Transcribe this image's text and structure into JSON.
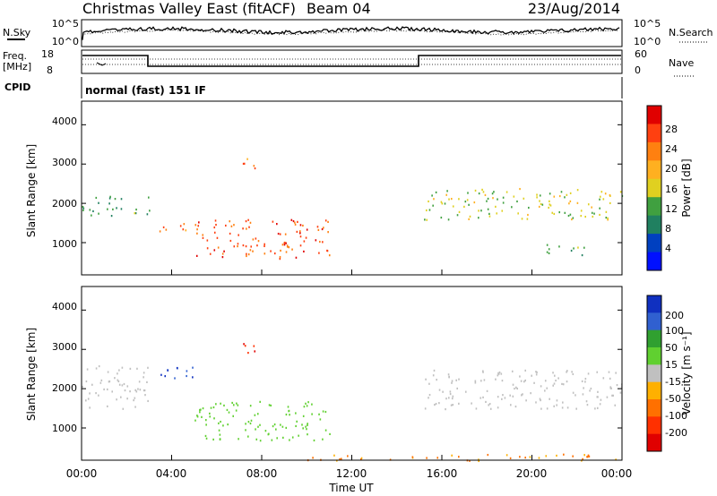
{
  "header": {
    "title": "Christmas Valley East (fitACF)",
    "beam": "Beam 04",
    "date": "23/Aug/2014"
  },
  "status": {
    "nsky_label": "N.Sky",
    "nsky_ticks": [
      "10^5",
      "10^0"
    ],
    "nsearch_label": "N.Search",
    "nsearch_ticks": [
      "10^5",
      "10^0"
    ],
    "freq_label": "Freq.",
    "freq_unit": "[MHz]",
    "freq_ticks": [
      "18",
      "8"
    ],
    "nave_label": "Nave",
    "nave_ticks": [
      "60",
      "0"
    ],
    "cpid_label": "CPID",
    "cpid_value": "normal (fast) 151 IF"
  },
  "panels": {
    "ylabel": "Slant Range [km]",
    "yticks": [
      "4000",
      "3000",
      "2000",
      "1000"
    ],
    "xlabel": "Time UT",
    "xticks": [
      "00:00",
      "04:00",
      "08:00",
      "12:00",
      "16:00",
      "20:00",
      "00:00"
    ]
  },
  "power_scale": {
    "label": "Power [dB]",
    "ticks": [
      "28",
      "24",
      "20",
      "16",
      "12",
      "8",
      "4"
    ],
    "colors": [
      "#e00000",
      "#ff4010",
      "#ff8010",
      "#ffb020",
      "#e0d020",
      "#40a040",
      "#208060",
      "#0040c0",
      "#0010ff"
    ]
  },
  "velocity_scale": {
    "label": "Velocity [m s⁻¹]",
    "ticks": [
      "200",
      "100",
      "50",
      "15",
      "-15",
      "-50",
      "-100",
      "-200"
    ],
    "colors": [
      "#1030c0",
      "#3060d0",
      "#30a030",
      "#60d030",
      "#c0c0c0",
      "#ffb000",
      "#ff7000",
      "#ff3000",
      "#e00000"
    ]
  },
  "chart_data": [
    {
      "type": "heatmap",
      "title": "Power",
      "xlabel": "Time UT",
      "ylabel": "Slant Range [km]",
      "xlim": [
        0,
        24
      ],
      "ylim": [
        180,
        4600
      ],
      "colorbar": "Power [dB]",
      "features": [
        {
          "time": [
            0,
            3
          ],
          "range": [
            1700,
            2200
          ],
          "power": 10
        },
        {
          "time": [
            3,
            6
          ],
          "range": [
            1300,
            1500
          ],
          "power": 22
        },
        {
          "time": [
            5,
            11
          ],
          "range": [
            600,
            1600
          ],
          "power": 26
        },
        {
          "time": [
            7,
            7.8
          ],
          "range": [
            2800,
            3200
          ],
          "power": 22
        },
        {
          "time": [
            15.2,
            24
          ],
          "range": [
            1600,
            2400
          ],
          "power": 14
        },
        {
          "time": [
            20.5,
            22.5
          ],
          "range": [
            700,
            1000
          ],
          "power": 12
        }
      ]
    },
    {
      "type": "heatmap",
      "title": "Velocity",
      "xlabel": "Time UT",
      "ylabel": "Slant Range [km]",
      "xlim": [
        0,
        24
      ],
      "ylim": [
        180,
        4600
      ],
      "colorbar": "Velocity [m s⁻¹]",
      "features": [
        {
          "time": [
            0,
            3
          ],
          "range": [
            1500,
            2600
          ],
          "velocity": 0
        },
        {
          "time": [
            3.3,
            5
          ],
          "range": [
            2200,
            2600
          ],
          "velocity": 200
        },
        {
          "time": [
            5,
            11
          ],
          "range": [
            700,
            1700
          ],
          "velocity": 40
        },
        {
          "time": [
            7,
            7.8
          ],
          "range": [
            2800,
            3200
          ],
          "velocity": -200
        },
        {
          "time": [
            15.2,
            24
          ],
          "range": [
            1500,
            2500
          ],
          "velocity": 0
        },
        {
          "time": [
            10,
            24
          ],
          "range": [
            180,
            350
          ],
          "velocity": -50
        }
      ]
    }
  ]
}
